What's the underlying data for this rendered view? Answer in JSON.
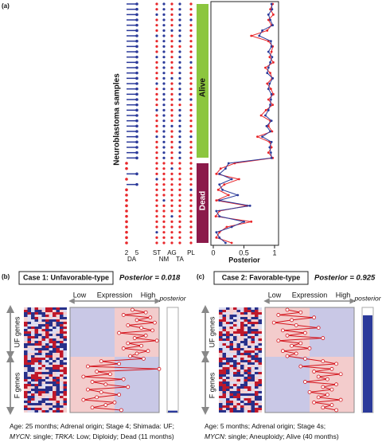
{
  "panel_a": {
    "label": "(a)",
    "y_label": "Neuroblastoma samples",
    "groups": [
      "Alive",
      "Dead"
    ],
    "da_ticks": [
      "2",
      "5"
    ],
    "da_label": "DA",
    "feature_ticks": [
      "ST",
      "AG",
      "PL"
    ],
    "feature_sublabels": [
      "NM",
      "TA"
    ],
    "da": [
      5,
      5,
      5,
      5,
      5,
      5,
      5,
      5,
      5,
      5,
      5,
      5,
      5,
      5,
      5,
      5,
      5,
      5,
      5,
      5,
      5,
      5,
      5,
      5,
      5,
      5,
      5,
      5,
      5,
      5,
      2,
      2,
      5,
      2,
      5,
      2,
      2,
      2,
      2,
      2,
      2,
      2,
      2,
      2,
      2,
      2
    ],
    "features": [
      [
        0,
        1,
        0,
        1,
        0
      ],
      [
        0,
        1,
        0,
        1,
        0
      ],
      [
        1,
        1,
        0,
        1,
        0
      ],
      [
        0,
        1,
        0,
        1,
        1
      ],
      [
        0,
        1,
        0,
        1,
        0
      ],
      [
        0,
        1,
        1,
        1,
        0
      ],
      [
        1,
        1,
        0,
        1,
        0
      ],
      [
        0,
        1,
        0,
        1,
        0
      ],
      [
        0,
        1,
        0,
        0,
        0
      ],
      [
        0,
        1,
        0,
        1,
        0
      ],
      [
        1,
        1,
        0,
        1,
        0
      ],
      [
        0,
        1,
        0,
        1,
        1
      ],
      [
        0,
        1,
        0,
        1,
        0
      ],
      [
        0,
        1,
        0,
        1,
        0
      ],
      [
        0,
        1,
        1,
        1,
        0
      ],
      [
        1,
        1,
        0,
        1,
        0
      ],
      [
        0,
        1,
        0,
        1,
        0
      ],
      [
        0,
        1,
        0,
        1,
        0
      ],
      [
        0,
        1,
        0,
        1,
        1
      ],
      [
        0,
        1,
        0,
        0,
        0
      ],
      [
        1,
        1,
        0,
        1,
        0
      ],
      [
        0,
        1,
        0,
        1,
        0
      ],
      [
        0,
        1,
        0,
        1,
        0
      ],
      [
        0,
        1,
        1,
        1,
        0
      ],
      [
        0,
        1,
        0,
        1,
        0
      ],
      [
        1,
        1,
        0,
        1,
        1
      ],
      [
        0,
        1,
        0,
        1,
        0
      ],
      [
        0,
        1,
        0,
        1,
        0
      ],
      [
        0,
        1,
        0,
        1,
        0
      ],
      [
        0,
        1,
        0,
        1,
        0
      ],
      [
        0,
        0,
        0,
        0,
        0
      ],
      [
        0,
        0,
        1,
        0,
        0
      ],
      [
        0,
        0,
        0,
        0,
        0
      ],
      [
        1,
        0,
        0,
        0,
        0
      ],
      [
        0,
        0,
        0,
        0,
        0
      ],
      [
        0,
        0,
        0,
        0,
        1
      ],
      [
        0,
        0,
        0,
        0,
        0
      ],
      [
        0,
        1,
        0,
        0,
        0
      ],
      [
        0,
        0,
        0,
        0,
        0
      ],
      [
        0,
        0,
        0,
        0,
        0
      ],
      [
        0,
        0,
        1,
        0,
        0
      ],
      [
        0,
        0,
        0,
        0,
        0
      ],
      [
        0,
        0,
        0,
        0,
        0
      ],
      [
        1,
        0,
        0,
        0,
        0
      ],
      [
        0,
        0,
        0,
        0,
        0
      ],
      [
        0,
        0,
        0,
        0,
        0
      ]
    ],
    "chart": {
      "type": "line",
      "xlabel": "Posterior",
      "xlim": [
        0,
        1
      ],
      "xticks": [
        0,
        0.5,
        1
      ],
      "series": [
        {
          "color": "#e8262a",
          "values": [
            0.97,
            0.93,
            0.98,
            0.9,
            0.95,
            0.88,
            0.62,
            0.9,
            0.97,
            0.95,
            0.92,
            0.98,
            0.85,
            0.93,
            0.96,
            0.88,
            0.94,
            0.98,
            0.9,
            0.97,
            0.86,
            0.78,
            0.93,
            0.9,
            0.96,
            0.72,
            0.92,
            0.95,
            0.9,
            0.97,
            0.35,
            0.12,
            0.05,
            0.42,
            0.18,
            0.08,
            0.25,
            0.05,
            0.55,
            0.1,
            0.04,
            0.62,
            0.22,
            0.1,
            0.05,
            0.3
          ]
        },
        {
          "color": "#2b3a9a",
          "values": [
            0.95,
            0.96,
            0.9,
            0.93,
            0.97,
            0.8,
            0.75,
            0.94,
            0.95,
            0.9,
            0.96,
            0.93,
            0.9,
            0.88,
            0.97,
            0.92,
            0.9,
            0.95,
            0.94,
            0.93,
            0.9,
            0.85,
            0.95,
            0.87,
            0.93,
            0.8,
            0.95,
            0.92,
            0.94,
            0.95,
            0.25,
            0.2,
            0.1,
            0.3,
            0.1,
            0.15,
            0.4,
            0.1,
            0.6,
            0.05,
            0.1,
            0.5,
            0.3,
            0.05,
            0.1,
            0.2
          ]
        }
      ]
    }
  },
  "cases": [
    {
      "label": "(b)",
      "title": "Case 1: Unfavorable-type",
      "posterior_label": "Posterior = 0.018",
      "posterior": 0.018,
      "axis_low": "Low",
      "axis_title": "Expression",
      "axis_high": "High",
      "gauge_label": "posterior",
      "gene_groups": [
        "UF genes",
        "F genes"
      ],
      "xlim": [
        -1,
        1
      ],
      "expression": [
        0.4,
        0.7,
        0.2,
        0.8,
        0.5,
        0.9,
        0.3,
        0.6,
        0.85,
        0.1,
        0.7,
        0.45,
        0.95,
        0.3,
        0.6,
        0.2,
        0.75,
        0.5,
        0.35,
        0.65,
        -0.3,
        0.1,
        -0.6,
        1.0,
        -0.4,
        -0.1,
        -0.7,
        0.2,
        -0.5,
        -0.2,
        0.3,
        -0.6,
        -0.3,
        0.1,
        -0.4,
        -0.7,
        0.0,
        -0.2,
        -0.5,
        0.15
      ],
      "caption": [
        [
          {
            "text": "Age: 25 months; Adrenal origin; Stage 4; Shimada: UF;",
            "italic": false
          }
        ],
        [
          {
            "text": "MYCN",
            "italic": true
          },
          {
            "text": ": single; ",
            "italic": false
          },
          {
            "text": "TRKA",
            "italic": true
          },
          {
            "text": ": Low; Diploidy; Dead (11 months)",
            "italic": false
          }
        ]
      ]
    },
    {
      "label": "(c)",
      "title": "Case 2: Favorable-type",
      "posterior_label": "Posterior = 0.925",
      "posterior": 0.925,
      "axis_low": "Low",
      "axis_title": "Expression",
      "axis_high": "High",
      "gauge_label": "posterior",
      "gene_groups": [
        "UF genes",
        "F genes"
      ],
      "xlim": [
        -1,
        1
      ],
      "expression": [
        -0.5,
        -0.2,
        -0.7,
        0.1,
        -0.4,
        -0.8,
        -0.3,
        0.2,
        -0.6,
        -0.1,
        -0.5,
        0.3,
        -0.7,
        -0.2,
        -0.4,
        0.0,
        -0.6,
        -0.3,
        -0.5,
        -0.1,
        0.3,
        0.6,
        -0.2,
        0.5,
        0.1,
        0.7,
        0.2,
        0.4,
        -0.1,
        0.6,
        0.3,
        0.5,
        0.0,
        0.4,
        0.2,
        0.7,
        0.1,
        0.5,
        0.3,
        0.6
      ],
      "caption": [
        [
          {
            "text": "Age: 5 months; Adrenal origin; Stage 4s;",
            "italic": false
          }
        ],
        [
          {
            "text": "MYCN",
            "italic": true
          },
          {
            "text": ": single; Aneuploidy; Alive (40 months)",
            "italic": false
          }
        ]
      ]
    }
  ]
}
